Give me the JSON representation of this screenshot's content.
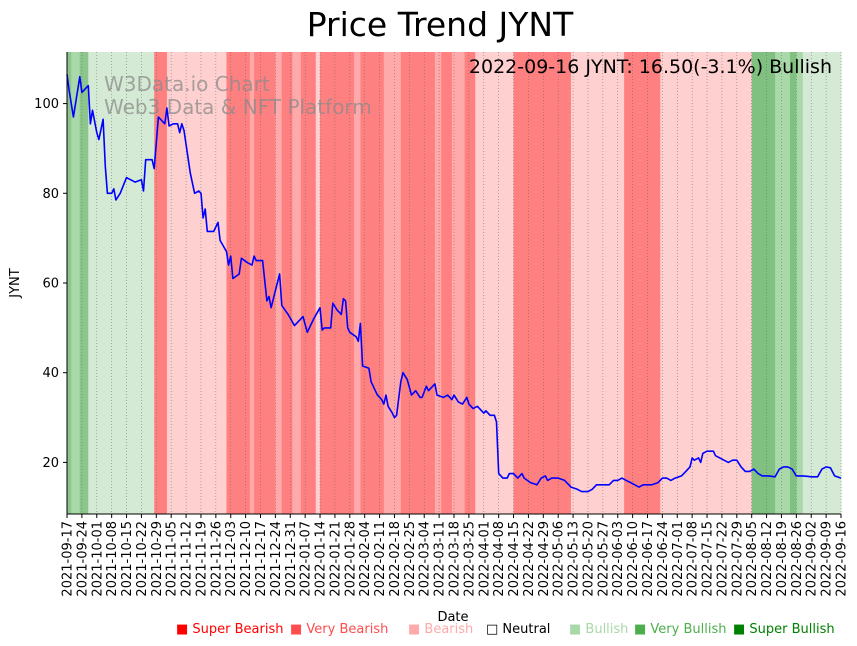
{
  "chart_data": {
    "type": "line",
    "title": "Price Trend JYNT",
    "xlabel": "Date",
    "ylabel": "JYNT",
    "ylim": [
      8.5,
      111.5
    ],
    "yticks": [
      20,
      40,
      60,
      80,
      100
    ],
    "annotation": "2022-09-16 JYNT: 16.50(-3.1%) Bullish",
    "watermark": [
      "W3Data.io Chart",
      "Web3 Data & NFT Platform"
    ],
    "xlim": [
      "2021-09-17",
      "2022-09-16"
    ],
    "xticks": [
      "2021-09-17",
      "2021-09-24",
      "2021-10-01",
      "2021-10-08",
      "2021-10-15",
      "2021-10-22",
      "2021-10-29",
      "2021-11-05",
      "2021-11-12",
      "2021-11-19",
      "2021-11-26",
      "2021-12-03",
      "2021-12-10",
      "2021-12-17",
      "2021-12-24",
      "2021-12-31",
      "2022-01-07",
      "2022-01-14",
      "2022-01-21",
      "2022-01-28",
      "2022-02-04",
      "2022-02-11",
      "2022-02-18",
      "2022-02-25",
      "2022-03-04",
      "2022-03-11",
      "2022-03-18",
      "2022-03-25",
      "2022-04-01",
      "2022-04-08",
      "2022-04-15",
      "2022-04-22",
      "2022-04-29",
      "2022-05-06",
      "2022-05-13",
      "2022-05-20",
      "2022-05-27",
      "2022-06-03",
      "2022-06-10",
      "2022-06-17",
      "2022-06-24",
      "2022-07-01",
      "2022-07-08",
      "2022-07-15",
      "2022-07-22",
      "2022-07-29",
      "2022-08-05",
      "2022-08-12",
      "2022-08-19",
      "2022-08-26",
      "2022-09-02",
      "2022-09-09",
      "2022-09-16"
    ],
    "sentiment_colors": {
      "Super Bearish": "#ff0000",
      "Very Bearish": "#ff4d4d",
      "Bearish": "#ffaaaa",
      "Neutral": "#ffffff",
      "Bullish": "#a9d8a9",
      "Very Bullish": "#4caf4c",
      "Super Bullish": "#008000"
    },
    "legend": [
      {
        "label": "Super Bearish",
        "color": "#ff0000",
        "marker": "■"
      },
      {
        "label": "Very Bearish",
        "color": "#ff4d4d",
        "marker": "■"
      },
      {
        "label": "Bearish",
        "color": "#ffaaaa",
        "marker": "■"
      },
      {
        "label": "Neutral",
        "color": "#000000",
        "marker": "□"
      },
      {
        "label": "Bullish",
        "color": "#a9d8a9",
        "marker": "■"
      },
      {
        "label": "Very Bullish",
        "color": "#4caf4c",
        "marker": "■"
      },
      {
        "label": "Super Bullish",
        "color": "#008000",
        "marker": "■"
      }
    ],
    "bands": [
      {
        "start": "2021-09-17",
        "end": "2021-09-19",
        "color": "#8cc68c"
      },
      {
        "start": "2021-09-19",
        "end": "2021-09-23",
        "color": "#a9d8a9"
      },
      {
        "start": "2021-09-23",
        "end": "2021-09-27",
        "color": "#8cc68c"
      },
      {
        "start": "2021-09-27",
        "end": "2021-10-28",
        "color": "#d4ead4"
      },
      {
        "start": "2021-10-28",
        "end": "2021-11-03",
        "color": "#ff8080"
      },
      {
        "start": "2021-11-03",
        "end": "2021-12-01",
        "color": "#ffd0d0"
      },
      {
        "start": "2021-12-01",
        "end": "2021-12-12",
        "color": "#ff8080"
      },
      {
        "start": "2021-12-12",
        "end": "2021-12-14",
        "color": "#ffaaaa"
      },
      {
        "start": "2021-12-14",
        "end": "2021-12-24",
        "color": "#ff8080"
      },
      {
        "start": "2021-12-24",
        "end": "2021-12-27",
        "color": "#ffaaaa"
      },
      {
        "start": "2021-12-27",
        "end": "2022-01-01",
        "color": "#ff8080"
      },
      {
        "start": "2022-01-01",
        "end": "2022-01-05",
        "color": "#ffaaaa"
      },
      {
        "start": "2022-01-05",
        "end": "2022-01-12",
        "color": "#ff8080"
      },
      {
        "start": "2022-01-12",
        "end": "2022-01-14",
        "color": "#ffd0d0"
      },
      {
        "start": "2022-01-14",
        "end": "2022-01-30",
        "color": "#ff8080"
      },
      {
        "start": "2022-01-30",
        "end": "2022-02-02",
        "color": "#ffaaaa"
      },
      {
        "start": "2022-02-02",
        "end": "2022-02-13",
        "color": "#ff8080"
      },
      {
        "start": "2022-02-13",
        "end": "2022-02-21",
        "color": "#ffaaaa"
      },
      {
        "start": "2022-02-21",
        "end": "2022-03-09",
        "color": "#ff8080"
      },
      {
        "start": "2022-03-09",
        "end": "2022-03-12",
        "color": "#ffaaaa"
      },
      {
        "start": "2022-03-12",
        "end": "2022-03-17",
        "color": "#ff8080"
      },
      {
        "start": "2022-03-17",
        "end": "2022-03-23",
        "color": "#ffaaaa"
      },
      {
        "start": "2022-03-23",
        "end": "2022-03-28",
        "color": "#ff8080"
      },
      {
        "start": "2022-03-28",
        "end": "2022-04-15",
        "color": "#ffd0d0"
      },
      {
        "start": "2022-04-15",
        "end": "2022-05-12",
        "color": "#ff8080"
      },
      {
        "start": "2022-05-12",
        "end": "2022-06-06",
        "color": "#ffd0d0"
      },
      {
        "start": "2022-06-06",
        "end": "2022-06-23",
        "color": "#ff8080"
      },
      {
        "start": "2022-06-23",
        "end": "2022-08-05",
        "color": "#ffd0d0"
      },
      {
        "start": "2022-08-05",
        "end": "2022-08-16",
        "color": "#80c080"
      },
      {
        "start": "2022-08-16",
        "end": "2022-08-23",
        "color": "#a9d8a9"
      },
      {
        "start": "2022-08-23",
        "end": "2022-08-26",
        "color": "#80c080"
      },
      {
        "start": "2022-08-26",
        "end": "2022-08-29",
        "color": "#a9d8a9"
      },
      {
        "start": "2022-08-29",
        "end": "2022-09-16",
        "color": "#d4ead4"
      }
    ],
    "series": [
      {
        "name": "JYNT",
        "color": "#0000ff",
        "points": [
          [
            "2021-09-17",
            106.5
          ],
          [
            "2021-09-18",
            103
          ],
          [
            "2021-09-20",
            97
          ],
          [
            "2021-09-23",
            106
          ],
          [
            "2021-09-24",
            102.5
          ],
          [
            "2021-09-27",
            104
          ],
          [
            "2021-09-28",
            95.5
          ],
          [
            "2021-09-29",
            98.5
          ],
          [
            "2021-10-01",
            93.5
          ],
          [
            "2021-10-02",
            92
          ],
          [
            "2021-10-04",
            96.5
          ],
          [
            "2021-10-05",
            86
          ],
          [
            "2021-10-06",
            80
          ],
          [
            "2021-10-08",
            80
          ],
          [
            "2021-10-09",
            81
          ],
          [
            "2021-10-10",
            78.5
          ],
          [
            "2021-10-12",
            80
          ],
          [
            "2021-10-15",
            83.5
          ],
          [
            "2021-10-17",
            83
          ],
          [
            "2021-10-19",
            82.5
          ],
          [
            "2021-10-22",
            83
          ],
          [
            "2021-10-23",
            80.5
          ],
          [
            "2021-10-24",
            87.5
          ],
          [
            "2021-10-27",
            87.5
          ],
          [
            "2021-10-28",
            85.5
          ],
          [
            "2021-10-30",
            97
          ],
          [
            "2021-11-02",
            95.5
          ],
          [
            "2021-11-03",
            99
          ],
          [
            "2021-11-04",
            95
          ],
          [
            "2021-11-06",
            95.5
          ],
          [
            "2021-11-08",
            95.5
          ],
          [
            "2021-11-09",
            93.5
          ],
          [
            "2021-11-10",
            95.5
          ],
          [
            "2021-11-11",
            94
          ],
          [
            "2021-11-14",
            84.5
          ],
          [
            "2021-11-16",
            80
          ],
          [
            "2021-11-18",
            80.5
          ],
          [
            "2021-11-19",
            80
          ],
          [
            "2021-11-20",
            74.5
          ],
          [
            "2021-11-21",
            76.5
          ],
          [
            "2021-11-22",
            71.5
          ],
          [
            "2021-11-25",
            71.5
          ],
          [
            "2021-11-27",
            73.5
          ],
          [
            "2021-11-28",
            69.5
          ],
          [
            "2021-12-01",
            67
          ],
          [
            "2021-12-02",
            64
          ],
          [
            "2021-12-03",
            66
          ],
          [
            "2021-12-04",
            61
          ],
          [
            "2021-12-07",
            62
          ],
          [
            "2021-12-08",
            65.5
          ],
          [
            "2021-12-11",
            64.5
          ],
          [
            "2021-12-13",
            64
          ],
          [
            "2021-12-14",
            66
          ],
          [
            "2021-12-15",
            65
          ],
          [
            "2021-12-18",
            65
          ],
          [
            "2021-12-20",
            56
          ],
          [
            "2021-12-21",
            57
          ],
          [
            "2021-12-22",
            54.5
          ],
          [
            "2021-12-26",
            62
          ],
          [
            "2021-12-27",
            55
          ],
          [
            "2021-12-30",
            53
          ],
          [
            "2022-01-02",
            50.5
          ],
          [
            "2022-01-04",
            51.5
          ],
          [
            "2022-01-06",
            52.5
          ],
          [
            "2022-01-08",
            49
          ],
          [
            "2022-01-09",
            50
          ],
          [
            "2022-01-11",
            52
          ],
          [
            "2022-01-14",
            54.5
          ],
          [
            "2022-01-15",
            49.5
          ],
          [
            "2022-01-16",
            50
          ],
          [
            "2022-01-19",
            50
          ],
          [
            "2022-01-20",
            55.5
          ],
          [
            "2022-01-22",
            54
          ],
          [
            "2022-01-24",
            53
          ],
          [
            "2022-01-25",
            56.5
          ],
          [
            "2022-01-26",
            56
          ],
          [
            "2022-01-27",
            50
          ],
          [
            "2022-01-28",
            49
          ],
          [
            "2022-01-31",
            48
          ],
          [
            "2022-02-01",
            47
          ],
          [
            "2022-02-02",
            51
          ],
          [
            "2022-02-03",
            41.5
          ],
          [
            "2022-02-06",
            41
          ],
          [
            "2022-02-07",
            38
          ],
          [
            "2022-02-09",
            36
          ],
          [
            "2022-02-10",
            35
          ],
          [
            "2022-02-12",
            34
          ],
          [
            "2022-02-13",
            33
          ],
          [
            "2022-02-14",
            35
          ],
          [
            "2022-02-15",
            32.5
          ],
          [
            "2022-02-17",
            31
          ],
          [
            "2022-02-18",
            30
          ],
          [
            "2022-02-19",
            30.5
          ],
          [
            "2022-02-21",
            38
          ],
          [
            "2022-02-22",
            40
          ],
          [
            "2022-02-24",
            38.5
          ],
          [
            "2022-02-26",
            35
          ],
          [
            "2022-02-28",
            36
          ],
          [
            "2022-03-02",
            34.5
          ],
          [
            "2022-03-03",
            34.5
          ],
          [
            "2022-03-05",
            37
          ],
          [
            "2022-03-06",
            36
          ],
          [
            "2022-03-08",
            37
          ],
          [
            "2022-03-09",
            37.5
          ],
          [
            "2022-03-10",
            35
          ],
          [
            "2022-03-13",
            34.5
          ],
          [
            "2022-03-15",
            35
          ],
          [
            "2022-03-17",
            34
          ],
          [
            "2022-03-18",
            35
          ],
          [
            "2022-03-20",
            33.5
          ],
          [
            "2022-03-22",
            33
          ],
          [
            "2022-03-24",
            34.5
          ],
          [
            "2022-03-25",
            33
          ],
          [
            "2022-03-27",
            32
          ],
          [
            "2022-03-29",
            32.5
          ],
          [
            "2022-03-31",
            31.5
          ],
          [
            "2022-04-01",
            31
          ],
          [
            "2022-04-02",
            31.5
          ],
          [
            "2022-04-04",
            30.5
          ],
          [
            "2022-04-06",
            30.5
          ],
          [
            "2022-04-07",
            29
          ],
          [
            "2022-04-08",
            17.5
          ],
          [
            "2022-04-10",
            16.5
          ],
          [
            "2022-04-12",
            16.5
          ],
          [
            "2022-04-13",
            17.5
          ],
          [
            "2022-04-15",
            17.5
          ],
          [
            "2022-04-17",
            16.5
          ],
          [
            "2022-04-19",
            17.5
          ],
          [
            "2022-04-20",
            16.5
          ],
          [
            "2022-04-23",
            15.5
          ],
          [
            "2022-04-26",
            15
          ],
          [
            "2022-04-28",
            16.5
          ],
          [
            "2022-04-30",
            17
          ],
          [
            "2022-05-01",
            16
          ],
          [
            "2022-05-03",
            16.5
          ],
          [
            "2022-05-06",
            16.5
          ],
          [
            "2022-05-09",
            16
          ],
          [
            "2022-05-12",
            14.5
          ],
          [
            "2022-05-15",
            14
          ],
          [
            "2022-05-17",
            13.5
          ],
          [
            "2022-05-20",
            13.5
          ],
          [
            "2022-05-22",
            14
          ],
          [
            "2022-05-24",
            15
          ],
          [
            "2022-05-27",
            15
          ],
          [
            "2022-05-30",
            15
          ],
          [
            "2022-06-01",
            16
          ],
          [
            "2022-06-03",
            16
          ],
          [
            "2022-06-05",
            16.5
          ],
          [
            "2022-06-07",
            16
          ],
          [
            "2022-06-09",
            15.5
          ],
          [
            "2022-06-11",
            15
          ],
          [
            "2022-06-13",
            14.5
          ],
          [
            "2022-06-15",
            15
          ],
          [
            "2022-06-17",
            15
          ],
          [
            "2022-06-19",
            15
          ],
          [
            "2022-06-22",
            15.5
          ],
          [
            "2022-06-24",
            16.5
          ],
          [
            "2022-06-26",
            16.5
          ],
          [
            "2022-06-28",
            16
          ],
          [
            "2022-06-30",
            16.5
          ],
          [
            "2022-07-03",
            17
          ],
          [
            "2022-07-05",
            18
          ],
          [
            "2022-07-07",
            19
          ],
          [
            "2022-07-08",
            21
          ],
          [
            "2022-07-09",
            20.5
          ],
          [
            "2022-07-11",
            21
          ],
          [
            "2022-07-12",
            20
          ],
          [
            "2022-07-13",
            22
          ],
          [
            "2022-07-15",
            22.5
          ],
          [
            "2022-07-17",
            22.5
          ],
          [
            "2022-07-18",
            22.5
          ],
          [
            "2022-07-19",
            21.5
          ],
          [
            "2022-07-21",
            21
          ],
          [
            "2022-07-23",
            20.5
          ],
          [
            "2022-07-25",
            20
          ],
          [
            "2022-07-27",
            20.5
          ],
          [
            "2022-07-29",
            20.5
          ],
          [
            "2022-07-31",
            19
          ],
          [
            "2022-08-02",
            18
          ],
          [
            "2022-08-04",
            18
          ],
          [
            "2022-08-06",
            18.5
          ],
          [
            "2022-08-08",
            17.5
          ],
          [
            "2022-08-10",
            17
          ],
          [
            "2022-08-13",
            17
          ],
          [
            "2022-08-16",
            16.8
          ],
          [
            "2022-08-18",
            18.5
          ],
          [
            "2022-08-20",
            19
          ],
          [
            "2022-08-22",
            19
          ],
          [
            "2022-08-24",
            18.5
          ],
          [
            "2022-08-26",
            17
          ],
          [
            "2022-08-29",
            17
          ],
          [
            "2022-08-31",
            16.9
          ],
          [
            "2022-09-02",
            16.8
          ],
          [
            "2022-09-05",
            16.8
          ],
          [
            "2022-09-07",
            18.5
          ],
          [
            "2022-09-09",
            19
          ],
          [
            "2022-09-11",
            18.8
          ],
          [
            "2022-09-13",
            17
          ],
          [
            "2022-09-16",
            16.5
          ]
        ]
      }
    ]
  }
}
